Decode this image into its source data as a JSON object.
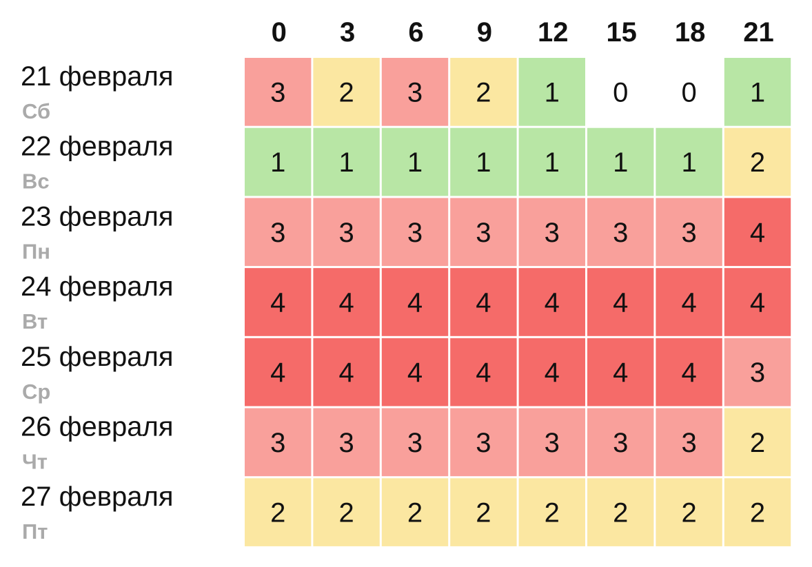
{
  "chart_data": {
    "type": "heatmap",
    "x": [
      "0",
      "3",
      "6",
      "9",
      "12",
      "15",
      "18",
      "21"
    ],
    "rows": [
      {
        "date": "21 февраля",
        "weekday": "Сб",
        "values": [
          3,
          2,
          3,
          2,
          1,
          0,
          0,
          1
        ]
      },
      {
        "date": "22 февраля",
        "weekday": "Вс",
        "values": [
          1,
          1,
          1,
          1,
          1,
          1,
          1,
          2
        ]
      },
      {
        "date": "23 февраля",
        "weekday": "Пн",
        "values": [
          3,
          3,
          3,
          3,
          3,
          3,
          3,
          4
        ]
      },
      {
        "date": "24 февраля",
        "weekday": "Вт",
        "values": [
          4,
          4,
          4,
          4,
          4,
          4,
          4,
          4
        ]
      },
      {
        "date": "25 февраля",
        "weekday": "Ср",
        "values": [
          4,
          4,
          4,
          4,
          4,
          4,
          4,
          3
        ]
      },
      {
        "date": "26 февраля",
        "weekday": "Чт",
        "values": [
          3,
          3,
          3,
          3,
          3,
          3,
          3,
          2
        ]
      },
      {
        "date": "27 февраля",
        "weekday": "Пт",
        "values": [
          2,
          2,
          2,
          2,
          2,
          2,
          2,
          2
        ]
      }
    ],
    "colors": {
      "0": "#ffffff",
      "1": "#b8e6a5",
      "2": "#fbe7a1",
      "3": "#f9a09b",
      "4": "#f56b69"
    },
    "grid": false,
    "legend": "none"
  }
}
